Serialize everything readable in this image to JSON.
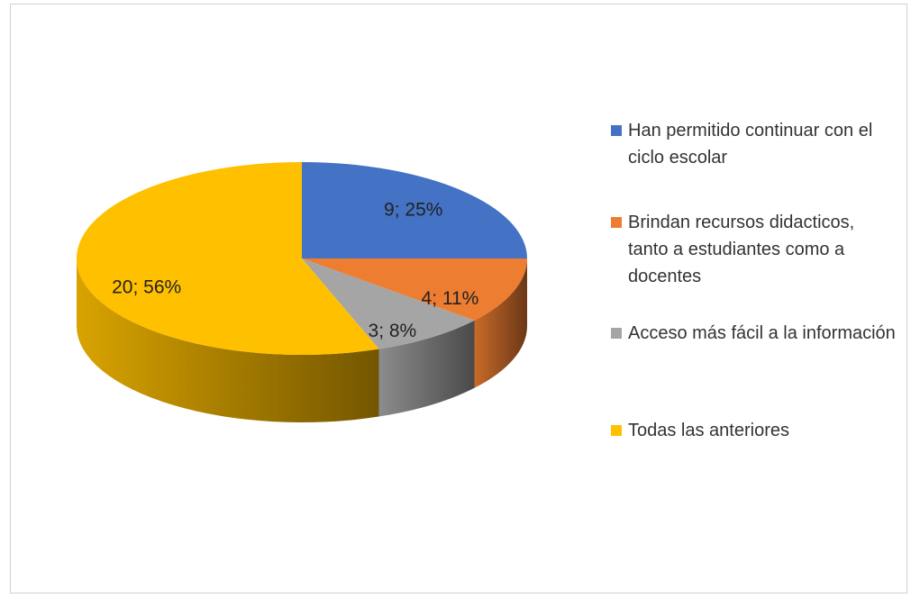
{
  "chart_data": {
    "type": "pie",
    "categories": [
      "Han permitido continuar con el ciclo escolar",
      "Brindan recursos didacticos, tanto a estudiantes como a docentes",
      "Acceso más fácil a la información",
      "Todas las anteriores"
    ],
    "values": [
      9,
      4,
      3,
      20
    ],
    "value_labels": [
      "9; 25%",
      "4; 11%",
      "3; 8%",
      "20; 56%"
    ],
    "colors": [
      "#4472c4",
      "#ed7d31",
      "#a5a5a5",
      "#ffc000"
    ],
    "legend": "right"
  }
}
